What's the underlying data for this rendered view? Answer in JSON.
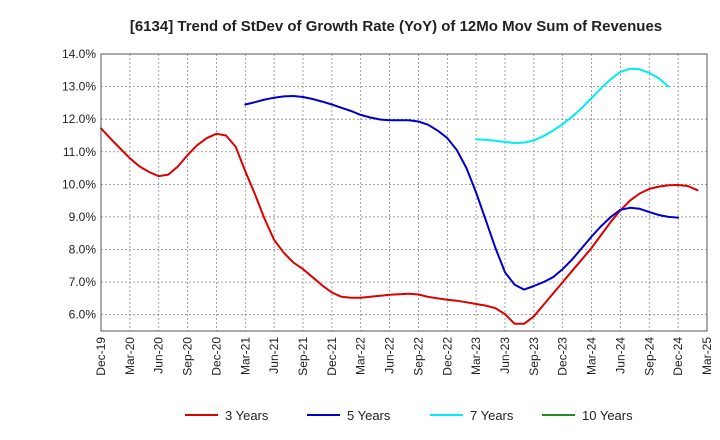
{
  "chart_data": {
    "type": "line",
    "title": "[6134]  Trend of StDev of Growth Rate (YoY) of 12Mo Mov Sum of Revenues",
    "xlabel": "",
    "ylabel": "",
    "x_ticks": [
      "Dec-19",
      "Mar-20",
      "Jun-20",
      "Sep-20",
      "Dec-20",
      "Mar-21",
      "Jun-21",
      "Sep-21",
      "Dec-21",
      "Mar-22",
      "Jun-22",
      "Sep-22",
      "Dec-22",
      "Mar-23",
      "Jun-23",
      "Sep-23",
      "Dec-23",
      "Mar-24",
      "Jun-24",
      "Sep-24",
      "Dec-24",
      "Mar-25"
    ],
    "y_ticks": [
      "6.0%",
      "7.0%",
      "8.0%",
      "9.0%",
      "10.0%",
      "11.0%",
      "12.0%",
      "13.0%",
      "14.0%"
    ],
    "ylim": [
      5.5,
      14.0
    ],
    "grid": true,
    "legend_position": "bottom",
    "series": [
      {
        "name": "3 Years",
        "color": "#dd0000",
        "start_month_index": 0,
        "values": [
          11.72,
          11.4,
          11.1,
          10.8,
          10.55,
          10.38,
          10.25,
          10.3,
          10.55,
          10.9,
          11.2,
          11.42,
          11.55,
          11.5,
          11.15,
          10.4,
          9.7,
          8.95,
          8.3,
          7.9,
          7.6,
          7.4,
          7.15,
          6.9,
          6.68,
          6.55,
          6.52,
          6.52,
          6.55,
          6.58,
          6.61,
          6.63,
          6.64,
          6.62,
          6.55,
          6.5,
          6.46,
          6.43,
          6.38,
          6.33,
          6.28,
          6.2,
          6.02,
          5.72,
          5.72,
          5.95,
          6.3,
          6.65,
          7.0,
          7.35,
          7.7,
          8.05,
          8.45,
          8.85,
          9.2,
          9.5,
          9.72,
          9.86,
          9.93,
          9.97,
          9.98,
          9.95,
          9.82
        ]
      },
      {
        "name": "5 Years",
        "color": "#0000cc",
        "start_month_index": 15,
        "values": [
          12.45,
          12.52,
          12.6,
          12.66,
          12.7,
          12.71,
          12.68,
          12.62,
          12.54,
          12.45,
          12.35,
          12.25,
          12.13,
          12.05,
          11.99,
          11.97,
          11.97,
          11.97,
          11.93,
          11.83,
          11.65,
          11.42,
          11.05,
          10.5,
          9.75,
          8.9,
          8.05,
          7.3,
          6.92,
          6.77,
          6.88,
          7.0,
          7.15,
          7.4,
          7.7,
          8.05,
          8.4,
          8.72,
          9.0,
          9.22,
          9.28,
          9.25,
          9.15,
          9.06,
          9.0,
          8.98
        ]
      },
      {
        "name": "7 Years",
        "color": "#00eeee",
        "start_month_index": 39,
        "values": [
          11.38,
          11.37,
          11.34,
          11.3,
          11.27,
          11.28,
          11.35,
          11.48,
          11.65,
          11.85,
          12.08,
          12.35,
          12.65,
          12.95,
          13.23,
          13.45,
          13.55,
          13.53,
          13.42,
          13.25,
          13.0
        ]
      },
      {
        "name": "10 Years",
        "color": "#228b22",
        "start_month_index": 0,
        "values": []
      }
    ]
  }
}
